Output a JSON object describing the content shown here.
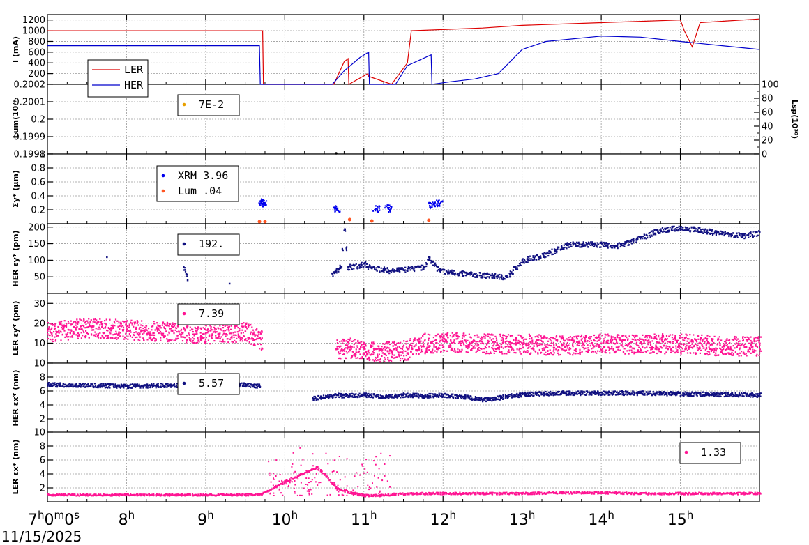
{
  "date": "11/15/2025",
  "time_ticks": [
    "7",
    "8",
    "9",
    "10",
    "11",
    "12",
    "13",
    "14",
    "15"
  ],
  "colors": {
    "ler": "#dd0000",
    "her": "#0000cc",
    "xrm": "#0000ee",
    "lum": "#ff5522",
    "her_emit": "#101080",
    "ler_emit": "#ff1493",
    "lum_legend": "#e8a000",
    "grid": "#999999"
  },
  "chart_data": [
    {
      "type": "line",
      "id": "current",
      "ylabel": "I (mA)",
      "ylim": [
        0,
        1300
      ],
      "yticks": [
        "1200",
        "1000",
        "800",
        "600",
        "400",
        "200"
      ],
      "series": [
        {
          "name": "LER",
          "x": [
            7.0,
            9.72,
            9.73,
            10.62,
            10.75,
            10.8,
            10.81,
            11.05,
            11.06,
            11.35,
            11.55,
            11.6,
            12.5,
            13.0,
            14.0,
            15.0,
            15.05,
            15.15,
            15.25,
            16.0
          ],
          "y": [
            1000,
            1000,
            0,
            0,
            420,
            480,
            0,
            200,
            150,
            0,
            400,
            1000,
            1050,
            1100,
            1150,
            1200,
            1000,
            700,
            1150,
            1220
          ]
        },
        {
          "name": "HER",
          "x": [
            7.0,
            9.68,
            9.69,
            10.6,
            10.75,
            10.95,
            11.06,
            11.07,
            11.4,
            11.55,
            11.85,
            11.86,
            12.1,
            12.4,
            12.7,
            13.0,
            13.3,
            14.0,
            14.5,
            15.0,
            16.0
          ],
          "y": [
            720,
            720,
            0,
            0,
            250,
            500,
            600,
            0,
            0,
            350,
            550,
            0,
            50,
            100,
            200,
            650,
            800,
            900,
            880,
            800,
            650
          ]
        }
      ]
    },
    {
      "type": "scatter",
      "id": "lum",
      "ylabel": "Lum(10⁷⁾",
      "ylim": [
        0.1998,
        0.2002
      ],
      "yticks": [
        "0.2002",
        "0.2001",
        "0.2",
        "0.1999",
        "0.1998"
      ],
      "y2label": "Lsp(10³⁰)",
      "y2lim": [
        0,
        100
      ],
      "y2ticks": [
        "100",
        "80",
        "60",
        "40",
        "20",
        "0"
      ],
      "series": [
        {
          "name": "7E-2",
          "value_label": "7E-2",
          "x": [
            10.65
          ],
          "y": [
            0.1998
          ]
        }
      ]
    },
    {
      "type": "scatter",
      "id": "sigma",
      "ylabel": "Σy* (μm)",
      "ylim": [
        0,
        1.0
      ],
      "yticks": [
        "1",
        "0.8",
        "0.6",
        "0.4",
        "0.2"
      ],
      "series": [
        {
          "name": "XRM",
          "value_label": "XRM 3.96",
          "x": [
            9.7,
            9.72,
            10.65,
            11.15,
            11.3,
            11.85,
            11.95
          ],
          "y": [
            0.3,
            0.32,
            0.22,
            0.22,
            0.23,
            0.28,
            0.3
          ]
        },
        {
          "name": "Lum",
          "value_label": "Lum  .04",
          "x": [
            9.68,
            9.75,
            10.82,
            11.1,
            11.82
          ],
          "y": [
            0.01,
            0.01,
            0.04,
            0.02,
            0.03
          ]
        }
      ]
    },
    {
      "type": "scatter",
      "id": "her_emit_y",
      "ylabel": "HER εy* (pm)",
      "ylim": [
        0,
        210
      ],
      "yticks": [
        "200",
        "150",
        "100",
        "50"
      ],
      "series": [
        {
          "name": "HER εy*",
          "value_label": "192.",
          "x": [
            7.75,
            8.72,
            8.77,
            9.3,
            10.6,
            10.7,
            10.75,
            10.8,
            11.0,
            11.05,
            11.35,
            11.55,
            11.75,
            11.82,
            11.95,
            12.1,
            12.3,
            12.6,
            12.8,
            13.0,
            13.3,
            13.6,
            13.9,
            14.2,
            14.4,
            14.7,
            15.0,
            15.3,
            15.6,
            15.8,
            16.0
          ],
          "y": [
            110,
            80,
            40,
            30,
            60,
            80,
            190,
            80,
            90,
            80,
            70,
            75,
            80,
            110,
            70,
            65,
            60,
            55,
            50,
            100,
            120,
            150,
            150,
            145,
            160,
            190,
            200,
            190,
            180,
            175,
            185
          ]
        }
      ]
    },
    {
      "type": "scatter",
      "id": "ler_emit_y",
      "ylabel": "LER εy* (pm)",
      "ylim": [
        0,
        35
      ],
      "yticks": [
        "30",
        "20",
        "10"
      ],
      "series": [
        {
          "name": "LER εy*",
          "value_label": "7.39",
          "x": [
            7.0,
            7.5,
            8.0,
            8.5,
            9.0,
            9.5,
            9.7,
            10.65,
            10.8,
            11.05,
            11.3,
            11.55,
            11.7,
            12.0,
            12.5,
            13.0,
            13.5,
            14.0,
            14.5,
            15.0,
            15.5,
            16.0
          ],
          "y": [
            16,
            18,
            17,
            16,
            15,
            16,
            12,
            7,
            8,
            6,
            6,
            7,
            10,
            11,
            10,
            10,
            9,
            10,
            10,
            10,
            9,
            9
          ]
        }
      ]
    },
    {
      "type": "scatter",
      "id": "her_emit_x",
      "ylabel": "HER εx* (nm)",
      "ylim": [
        0,
        10
      ],
      "yticks": [
        "10",
        "8",
        "6",
        "4",
        "2"
      ],
      "series": [
        {
          "name": "HER εx*",
          "value_label": "5.57",
          "x": [
            7.0,
            7.5,
            8.0,
            8.5,
            9.0,
            9.5,
            9.68,
            10.35,
            10.65,
            10.75,
            11.0,
            11.3,
            11.5,
            11.8,
            11.95,
            12.3,
            12.5,
            12.8,
            13.0,
            13.5,
            14.0,
            14.5,
            15.0,
            15.5,
            16.0
          ],
          "y": [
            7,
            6.9,
            6.8,
            6.9,
            6.8,
            7,
            6.8,
            5,
            5.5,
            5.4,
            5.5,
            5.3,
            5.5,
            5.4,
            5.5,
            5.2,
            4.8,
            5.3,
            5.6,
            5.8,
            5.8,
            5.8,
            5.7,
            5.6,
            5.5
          ]
        }
      ]
    },
    {
      "type": "scatter",
      "id": "ler_emit_x",
      "ylabel": "LER εx* (nm)",
      "ylim": [
        0,
        10
      ],
      "yticks": [
        "10",
        "8",
        "6",
        "4",
        "2"
      ],
      "series": [
        {
          "name": "LER εx*",
          "value_label": "1.33",
          "x": [
            7.0,
            7.5,
            8.0,
            8.5,
            9.0,
            9.5,
            9.7,
            10.0,
            10.2,
            10.4,
            10.5,
            10.65,
            10.8,
            11.0,
            11.2,
            11.4,
            11.6,
            12.0,
            12.5,
            13.0,
            13.5,
            14.0,
            14.5,
            15.0,
            15.5,
            16.0
          ],
          "y": [
            1.1,
            1.1,
            1.1,
            1.1,
            1.1,
            1.1,
            1.2,
            3,
            4,
            5,
            4,
            2,
            1.5,
            1,
            1,
            1.2,
            1.3,
            1.3,
            1.3,
            1.3,
            1.4,
            1.4,
            1.3,
            1.3,
            1.3,
            1.3
          ]
        }
      ]
    }
  ]
}
